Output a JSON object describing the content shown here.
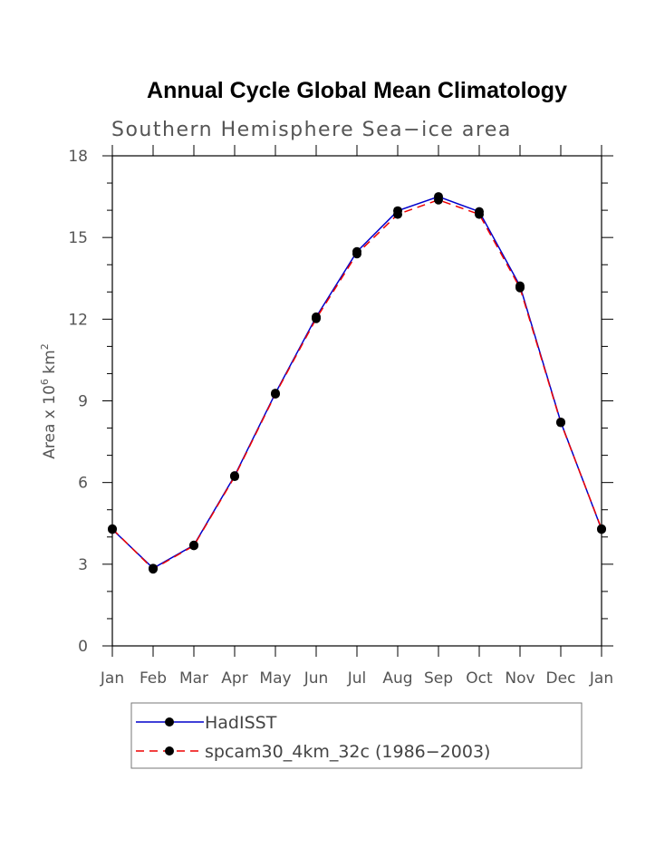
{
  "chart_data": {
    "type": "line",
    "title": "Annual Cycle Global Mean Climatology",
    "subtitle": "Southern Hemisphere Sea−ice area",
    "ylabel_prefix": "Area x 10",
    "ylabel_exp1": "6",
    "ylabel_mid": " km",
    "ylabel_exp2": "2",
    "xlabel": "",
    "categories": [
      "Jan",
      "Feb",
      "Mar",
      "Apr",
      "May",
      "Jun",
      "Jul",
      "Aug",
      "Sep",
      "Oct",
      "Nov",
      "Dec",
      "Jan"
    ],
    "ylim": [
      0,
      18
    ],
    "yticks": [
      0,
      3,
      6,
      9,
      12,
      15,
      18
    ],
    "legend_placement": "bottom",
    "grid": false,
    "series": [
      {
        "name": "HadISST",
        "color": "#0000cc",
        "dash": "solid",
        "values": [
          4.28,
          2.85,
          3.7,
          6.25,
          9.28,
          12.08,
          14.48,
          15.98,
          16.5,
          15.95,
          13.22,
          8.22,
          4.28
        ]
      },
      {
        "name": "spcam30_4km_32c (1986−2003)",
        "color": "#ee0000",
        "dash": "dashed",
        "values": [
          4.3,
          2.82,
          3.68,
          6.22,
          9.25,
          12.02,
          14.4,
          15.85,
          16.38,
          15.85,
          13.15,
          8.2,
          4.3
        ]
      }
    ]
  }
}
